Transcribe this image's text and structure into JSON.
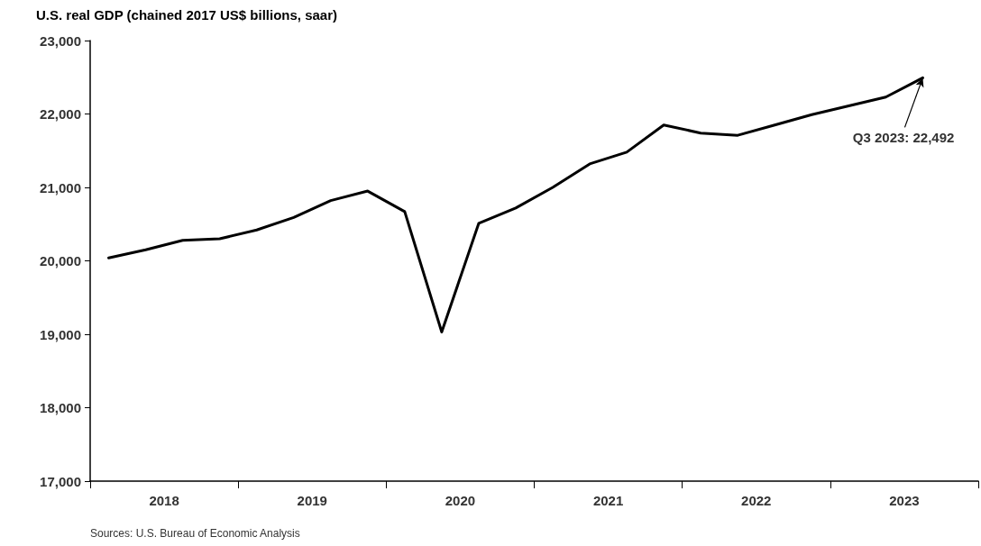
{
  "chart_data": {
    "type": "line",
    "title": "U.S. real GDP (chained 2017 US$ billions, saar)",
    "x": [
      2018.125,
      2018.375,
      2018.625,
      2018.875,
      2019.125,
      2019.375,
      2019.625,
      2019.875,
      2020.125,
      2020.375,
      2020.625,
      2020.875,
      2021.125,
      2021.375,
      2021.625,
      2021.875,
      2022.125,
      2022.375,
      2022.625,
      2022.875,
      2023.125,
      2023.375,
      2023.625
    ],
    "series": [
      {
        "color": "#000000",
        "values": [
          20040,
          20150,
          20280,
          20300,
          20420,
          20590,
          20820,
          20950,
          20670,
          19030,
          20510,
          20720,
          21000,
          21320,
          21480,
          21850,
          21740,
          21710,
          21850,
          21990,
          22110,
          22230,
          22492
        ]
      }
    ],
    "xlim": [
      2018,
      2024
    ],
    "xticks": [
      {
        "value": 2018,
        "label": null
      },
      {
        "value": 2018.5,
        "label": "2018"
      },
      {
        "value": 2019,
        "label": null
      },
      {
        "value": 2019.5,
        "label": "2019"
      },
      {
        "value": 2020,
        "label": null
      },
      {
        "value": 2020.5,
        "label": "2020"
      },
      {
        "value": 2021,
        "label": null
      },
      {
        "value": 2021.5,
        "label": "2021"
      },
      {
        "value": 2022,
        "label": null
      },
      {
        "value": 2022.5,
        "label": "2022"
      },
      {
        "value": 2023,
        "label": null
      },
      {
        "value": 2023.5,
        "label": "2023"
      },
      {
        "value": 2024,
        "label": null
      }
    ],
    "ylim": [
      17000,
      23000
    ],
    "yticks": [
      {
        "value": 17000,
        "label": "17,000"
      },
      {
        "value": 18000,
        "label": "18,000"
      },
      {
        "value": 19000,
        "label": "19,000"
      },
      {
        "value": 20000,
        "label": "20,000"
      },
      {
        "value": 21000,
        "label": "21,000"
      },
      {
        "value": 22000,
        "label": "22,000"
      },
      {
        "value": 23000,
        "label": "23,000"
      }
    ],
    "grid": false,
    "marker": "none",
    "line_style": "solid",
    "annotations": [
      {
        "text": "Q3 2023: 22,492",
        "x": 2023.625,
        "y": 22492
      },
      "Sources: U.S. Bureau of Economic Analysis"
    ]
  }
}
